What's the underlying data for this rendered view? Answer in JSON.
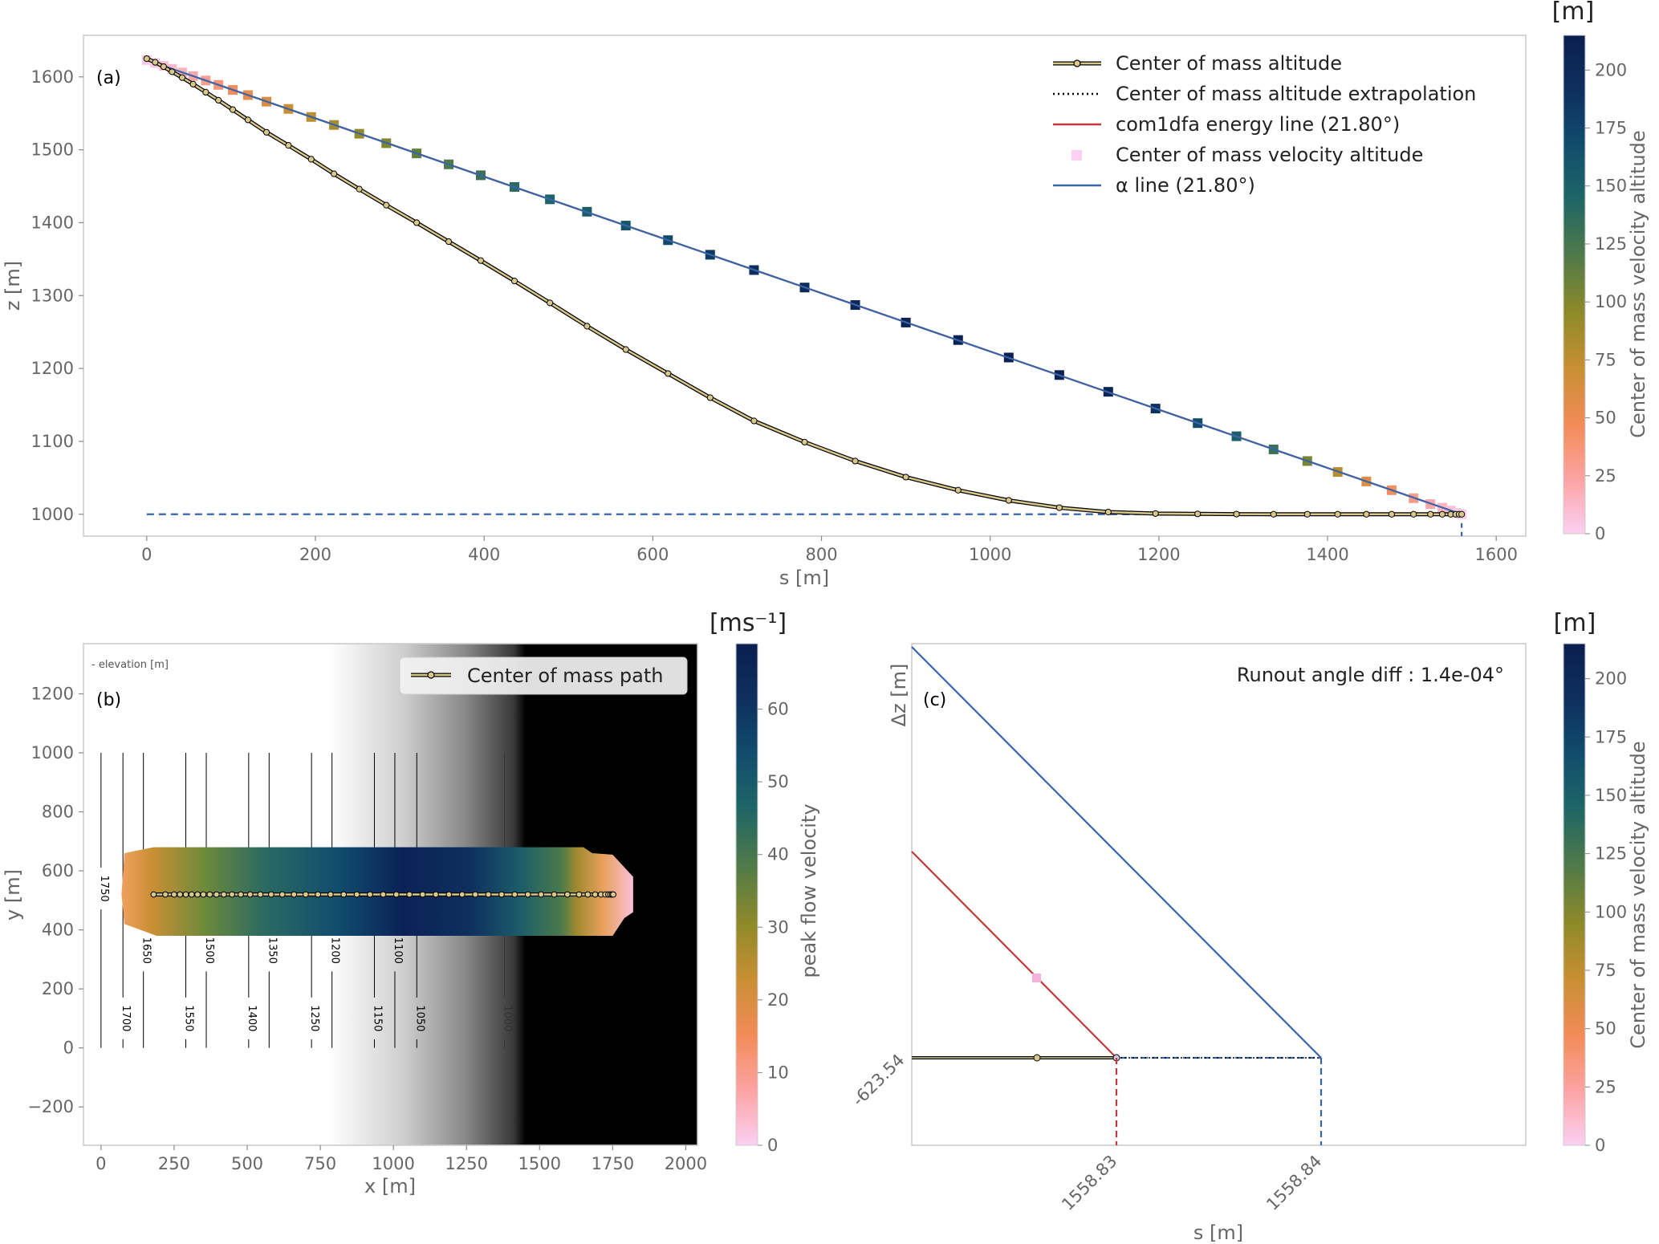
{
  "colors": {
    "com_line": "#000000",
    "com_fill": "#d8c98a",
    "energy_line": "#c0393b",
    "alpha_line": "#3a64a8",
    "frame": "#cccccc",
    "text": "#666666",
    "batlow_like": [
      "#fbd0f2",
      "#fca3a3",
      "#f28b57",
      "#c98f34",
      "#8f8a28",
      "#4f7a4a",
      "#1f6666",
      "#114d6d",
      "#0e2f5e",
      "#0b1f4f"
    ]
  },
  "panel_a": {
    "tag": "(a)",
    "xlabel": "s [m]",
    "ylabel": "z [m]",
    "xticks": [
      0,
      200,
      400,
      600,
      800,
      1000,
      1200,
      1400,
      1600
    ],
    "yticks": [
      1000,
      1100,
      1200,
      1300,
      1400,
      1500,
      1600
    ],
    "colorbar": {
      "unit": "[m]",
      "label": "Center of mass velocity altitude",
      "ticks": [
        0,
        25,
        50,
        75,
        100,
        125,
        150,
        175,
        200
      ],
      "range": [
        0,
        215
      ]
    },
    "legend": [
      {
        "label": "Center of mass altitude",
        "style": "com"
      },
      {
        "label": "Center of mass altitude extrapolation",
        "style": "dotted"
      },
      {
        "label": "com1dfa energy line (21.80°)",
        "style": "energy"
      },
      {
        "label": "Center of mass velocity altitude",
        "style": "square"
      },
      {
        "label": "α line (21.80°)",
        "style": "alpha"
      }
    ]
  },
  "panel_b": {
    "tag": "(b)",
    "xlabel": "x [m]",
    "ylabel": "y [m]",
    "elevation_note": "- elevation [m]",
    "xticks": [
      0,
      250,
      500,
      750,
      1000,
      1250,
      1500,
      1750,
      2000
    ],
    "yticks": [
      -200,
      0,
      200,
      400,
      600,
      800,
      1000,
      1200
    ],
    "legend": "Center of mass path",
    "colorbar": {
      "unit": "[ms⁻¹]",
      "label": "peak flow velocity",
      "ticks": [
        0,
        10,
        20,
        30,
        40,
        50,
        60
      ],
      "range": [
        0,
        69
      ]
    },
    "contours": [
      {
        "x": 0,
        "label": "1750",
        "label_y": 540,
        "fade": 1
      },
      {
        "x": 75,
        "label": "1700",
        "label_y": 100,
        "fade": 1
      },
      {
        "x": 145,
        "label": "1650",
        "label_y": 330,
        "fade": 1
      },
      {
        "x": 290,
        "label": "1550",
        "label_y": 100,
        "fade": 1
      },
      {
        "x": 360,
        "label": "1500",
        "label_y": 330,
        "fade": 1
      },
      {
        "x": 505,
        "label": "1400",
        "label_y": 100,
        "fade": 1
      },
      {
        "x": 575,
        "label": "1350",
        "label_y": 330,
        "fade": 1
      },
      {
        "x": 720,
        "label": "1250",
        "label_y": 100,
        "fade": 1
      },
      {
        "x": 790,
        "label": "1200",
        "label_y": 330,
        "fade": 1
      },
      {
        "x": 935,
        "label": "1150",
        "label_y": 100,
        "fade": 1
      },
      {
        "x": 1005,
        "label": "1100",
        "label_y": 330,
        "fade": 1
      },
      {
        "x": 1080,
        "label": "1050",
        "label_y": 100,
        "fade": 1
      },
      {
        "x": 1380,
        "label": "1000",
        "label_y": 100,
        "fade": 0.25
      }
    ]
  },
  "panel_c": {
    "tag": "(c)",
    "xlabel": "s [m]",
    "ylabel": "Δz [m]",
    "note": "Runout angle diff : 1.4e-04°",
    "xtick_labels": [
      "1558.83",
      "1558.84"
    ],
    "ytick_label": "-623.54",
    "colorbar": {
      "unit": "[m]",
      "label": "Center of mass velocity altitude",
      "ticks": [
        0,
        25,
        50,
        75,
        100,
        125,
        150,
        175,
        200
      ],
      "range": [
        0,
        215
      ]
    }
  },
  "chart_data": [
    {
      "type": "line",
      "panel": "a",
      "series": [
        {
          "name": "Center of mass altitude",
          "x": [
            0,
            10,
            20,
            30,
            42,
            55,
            70,
            85,
            102,
            120,
            142,
            168,
            195,
            222,
            252,
            284,
            320,
            358,
            396,
            436,
            478,
            522,
            568,
            618,
            668,
            720,
            780,
            840,
            900,
            962,
            1022,
            1082,
            1140,
            1196,
            1246,
            1292,
            1336,
            1376,
            1412,
            1446,
            1476,
            1502,
            1522,
            1536,
            1546,
            1552,
            1556,
            1559
          ],
          "y": [
            1625,
            1620,
            1614,
            1607,
            1599,
            1590,
            1579,
            1568,
            1555,
            1541,
            1524,
            1506,
            1487,
            1467,
            1446,
            1424,
            1400,
            1374,
            1348,
            1320,
            1290,
            1258,
            1226,
            1193,
            1160,
            1128,
            1099,
            1073,
            1051,
            1033,
            1019,
            1009,
            1003,
            1001,
            1000.5,
            1000.2,
            1000,
            1000,
            1000,
            1000,
            1000,
            1000,
            1000,
            1000,
            1000,
            1000,
            1000,
            1000
          ]
        },
        {
          "name": "Center of mass velocity altitude",
          "x": [
            0,
            10,
            20,
            30,
            42,
            55,
            70,
            85,
            102,
            120,
            142,
            168,
            195,
            222,
            252,
            284,
            320,
            358,
            396,
            436,
            478,
            522,
            568,
            618,
            668,
            720,
            780,
            840,
            900,
            962,
            1022,
            1082,
            1140,
            1196,
            1246,
            1292,
            1336,
            1376,
            1412,
            1446,
            1476,
            1502,
            1522,
            1536,
            1546,
            1552,
            1556,
            1559
          ],
          "y": [
            1623,
            1619,
            1615,
            1611,
            1606,
            1601,
            1595,
            1589,
            1582,
            1575,
            1566,
            1556,
            1545,
            1534,
            1522,
            1509,
            1495,
            1480,
            1465,
            1449,
            1432,
            1415,
            1396,
            1376,
            1356,
            1335,
            1311,
            1287,
            1263,
            1239,
            1215,
            1191,
            1168,
            1145,
            1125,
            1107,
            1089,
            1073,
            1058,
            1045,
            1033,
            1022,
            1014,
            1009,
            1005,
            1002,
            1001,
            1000
          ],
          "color_values": [
            4,
            5,
            8,
            11,
            16,
            22,
            30,
            38,
            46,
            55,
            62,
            70,
            78,
            86,
            94,
            102,
            112,
            120,
            130,
            138,
            146,
            152,
            160,
            172,
            182,
            192,
            200,
            205,
            210,
            212,
            213,
            212,
            208,
            190,
            170,
            150,
            130,
            105,
            80,
            60,
            45,
            32,
            22,
            14,
            9,
            5,
            3,
            2
          ]
        },
        {
          "name": "α line (21.80°)",
          "x": [
            0,
            1559
          ],
          "y": [
            1623,
            1000
          ]
        },
        {
          "name": "runout level",
          "x": [
            0,
            1559
          ],
          "y": [
            1000,
            1000
          ]
        }
      ],
      "xlim": [
        -75,
        1635
      ],
      "ylim": [
        970,
        1657
      ]
    },
    {
      "type": "heatmap",
      "panel": "b",
      "title": "",
      "series": [
        {
          "name": "Center of mass path",
          "x": [
            180,
            220,
            250,
            270,
            290,
            310,
            330,
            350,
            372,
            395,
            420,
            448,
            478,
            510,
            545,
            582,
            620,
            660,
            700,
            742,
            785,
            830,
            875,
            920,
            965,
            1010,
            1055,
            1100,
            1145,
            1190,
            1235,
            1280,
            1325,
            1370,
            1415,
            1460,
            1505,
            1550,
            1595,
            1635,
            1665,
            1690,
            1710,
            1725,
            1735,
            1742,
            1748,
            1752
          ],
          "y": [
            520,
            520,
            520,
            520,
            520,
            520,
            520,
            520,
            520,
            520,
            520,
            520,
            520,
            520,
            520,
            520,
            520,
            520,
            520,
            520,
            520,
            520,
            520,
            520,
            520,
            520,
            520,
            520,
            520,
            520,
            520,
            520,
            520,
            520,
            520,
            520,
            520,
            520,
            520,
            520,
            520,
            520,
            520,
            520,
            520,
            520,
            520,
            520
          ]
        }
      ],
      "xlim": [
        -60,
        2040
      ],
      "ylim": [
        -330,
        1370
      ]
    },
    {
      "type": "line",
      "panel": "c",
      "series": [
        {
          "name": "α line",
          "x": [
            0,
            1
          ],
          "y": [
            1,
            0
          ]
        },
        {
          "name": "com1dfa energy line",
          "x": [
            0,
            1
          ],
          "y": [
            1,
            0
          ]
        },
        {
          "name": "Center of mass velocity altitude",
          "x": [
            0.62
          ],
          "y": [
            0.38
          ]
        },
        {
          "name": "Center of mass altitude",
          "x": [
            0.62
          ],
          "y": [
            0
          ]
        }
      ]
    }
  ]
}
